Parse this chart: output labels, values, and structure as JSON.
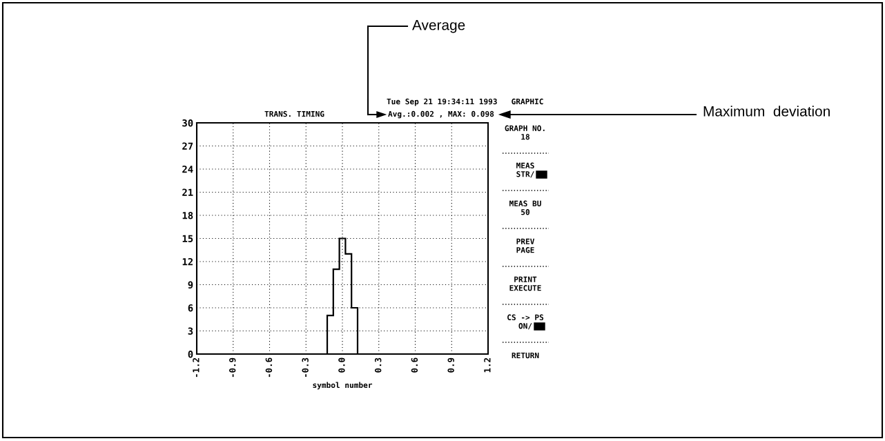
{
  "chart_data": {
    "type": "histogram",
    "title": "TRANS. TIMING",
    "subtitle": "Tue Sep 21 19:34:11 1993   GRAPHIC",
    "xlabel": "symbol number",
    "bins": [
      -0.125,
      -0.075,
      -0.025,
      0.025,
      0.075,
      0.125
    ],
    "values": [
      5,
      11,
      15,
      13,
      6
    ],
    "color": "#000000",
    "xlim": [
      -1.2,
      1.2
    ],
    "xticks": [
      -1.2,
      -0.9,
      -0.6,
      -0.3,
      {
        "value": 0,
        "label": "0.0"
      },
      0.3,
      0.6,
      0.9,
      1.2
    ],
    "ylim": [
      0,
      30
    ],
    "yticks": [
      0,
      3,
      6,
      9,
      12,
      15,
      18,
      21,
      24,
      27,
      30
    ],
    "grid": true,
    "annotations": [
      "Avg.:0.002 , MAX: 0.098",
      "Average",
      "Maximum  deviation",
      "GRAPH NO.\n18",
      "MEAS\nSTR/",
      "MEAS BU\n50",
      "PREV\nPAGE",
      "PRINT\nEXECUTE",
      "CS -> PS\nON/",
      "RETURN"
    ]
  }
}
